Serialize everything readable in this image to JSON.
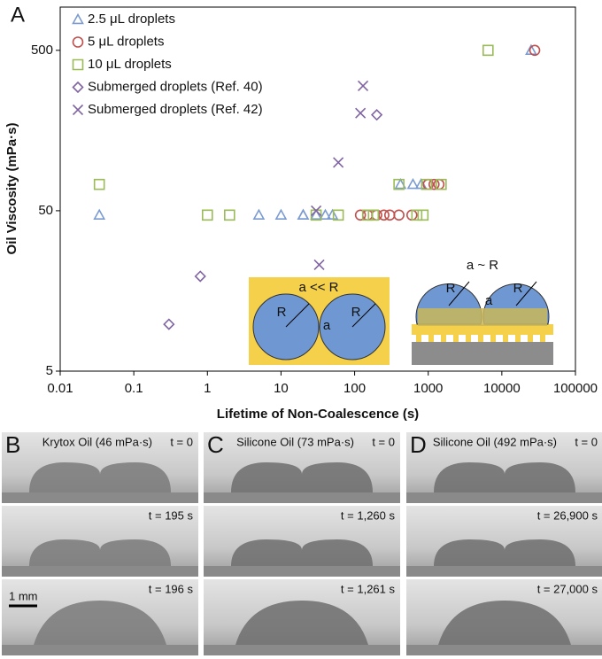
{
  "chart_data": {
    "type": "scatter",
    "panel_label": "A",
    "xlabel": "Lifetime of Non-Coalescence (s)",
    "ylabel": "Oil Viscosity (mPa·s)",
    "xlog": true,
    "ylog": true,
    "xlim": [
      0.01,
      100000
    ],
    "ylim": [
      5,
      930
    ],
    "xticks": [
      0.01,
      0.1,
      1,
      10,
      100,
      1000,
      10000,
      100000
    ],
    "yticks": [
      5,
      50,
      500
    ],
    "legend": "upper left",
    "series": [
      {
        "name": "2.5 μL droplets",
        "color": "#7b9bd0",
        "marker": "triangle",
        "x": [
          0.034,
          5,
          10,
          20,
          20,
          30,
          40,
          50,
          420,
          620,
          800,
          25000
        ],
        "values": [
          47,
          47,
          47,
          47,
          47,
          47,
          47,
          47,
          73,
          73,
          73,
          500
        ]
      },
      {
        "name": "5 μL droplets",
        "color": "#c0504d",
        "marker": "circle",
        "x": [
          120,
          150,
          200,
          250,
          300,
          400,
          600,
          1000,
          1200,
          1400,
          28000
        ],
        "values": [
          47,
          47,
          47,
          47,
          47,
          47,
          47,
          73,
          73,
          73,
          500
        ]
      },
      {
        "name": "10 μL droplets",
        "color": "#9bbb59",
        "marker": "square",
        "x": [
          0.034,
          1,
          2,
          30,
          60,
          150,
          180,
          700,
          850,
          400,
          950,
          1500,
          6500
        ],
        "values": [
          73,
          47,
          47,
          47,
          47,
          47,
          47,
          47,
          47,
          73,
          73,
          73,
          500
        ]
      },
      {
        "name": "Submerged droplets (Ref. 40)",
        "color": "#8064a2",
        "marker": "diamond",
        "x": [
          0.3,
          0.8,
          200
        ],
        "values": [
          9.8,
          19.5,
          198
        ]
      },
      {
        "name": "Submerged droplets (Ref. 42)",
        "color": "#8064a2",
        "marker": "cross",
        "x": [
          30,
          33,
          60,
          120,
          130
        ],
        "values": [
          50,
          23,
          100,
          203,
          300
        ]
      }
    ]
  },
  "insets": {
    "left": {
      "title": "a << R",
      "r1": "R",
      "r2": "R",
      "gap": "a"
    },
    "right": {
      "title": "a ~ R",
      "r1": "R",
      "r2": "R",
      "gap": "a"
    }
  },
  "photos": {
    "scale": "1 mm",
    "panels": [
      {
        "label": "B",
        "caption": "Krytox Oil (46 mPa·s)",
        "times": [
          "t = 0",
          "t = 195 s",
          "t = 196 s"
        ]
      },
      {
        "label": "C",
        "caption": "Silicone Oil (73 mPa·s)",
        "times": [
          "t = 0",
          "t = 1,260 s",
          "t = 1,261 s"
        ]
      },
      {
        "label": "D",
        "caption": "Silicone Oil (492 mPa·s)",
        "times": [
          "t = 0",
          "t = 26,900 s",
          "t = 27,000 s"
        ]
      }
    ]
  }
}
